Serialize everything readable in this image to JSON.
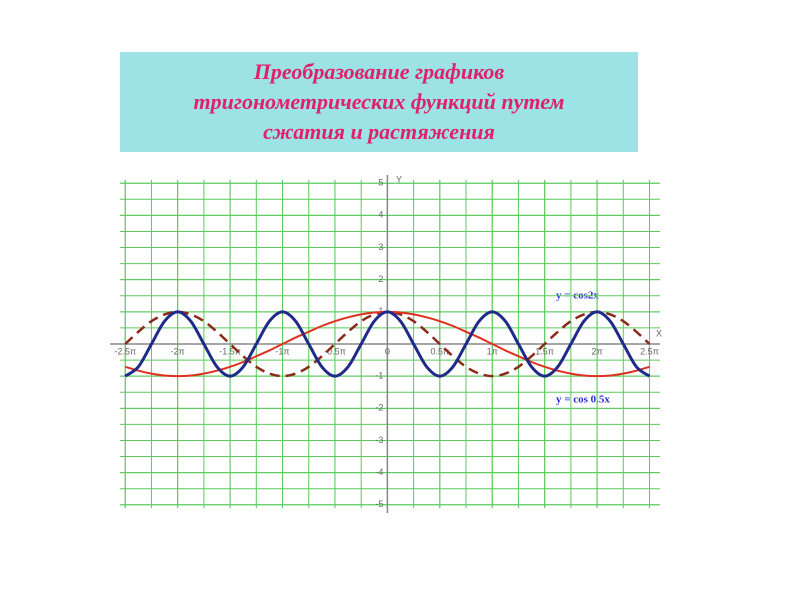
{
  "chart_data": {
    "type": "line",
    "title": "Преобразование графиков тригонометрических функций путем сжатия и растяжения",
    "x_label": "X",
    "y_label": "Y",
    "x": [
      -2.5,
      -2.375,
      -2.25,
      -2.125,
      -2,
      -1.875,
      -1.75,
      -1.625,
      -1.5,
      -1.375,
      -1.25,
      -1.125,
      -1,
      -0.875,
      -0.75,
      -0.625,
      -0.5,
      -0.375,
      -0.25,
      -0.125,
      0,
      0.125,
      0.25,
      0.375,
      0.5,
      0.625,
      0.75,
      0.875,
      1,
      1.125,
      1.25,
      1.375,
      1.5,
      1.625,
      1.75,
      1.875,
      2,
      2.125,
      2.25,
      2.375,
      2.5
    ],
    "series": [
      {
        "color": "#8b2a1a",
        "dashed": true,
        "values": [
          0,
          0.38,
          0.71,
          0.92,
          1,
          0.92,
          0.71,
          0.38,
          0,
          -0.38,
          -0.71,
          -0.92,
          -1,
          -0.92,
          -0.71,
          -0.38,
          0,
          0.38,
          0.71,
          0.92,
          1,
          0.92,
          0.71,
          0.38,
          0,
          -0.38,
          -0.71,
          -0.92,
          -1,
          -0.92,
          -0.71,
          -0.38,
          0,
          0.38,
          0.71,
          0.92,
          1,
          0.92,
          0.71,
          0.38,
          0
        ]
      },
      {
        "name": "y = cos 0.5x",
        "color": "#e03020",
        "values": [
          -0.71,
          -0.83,
          -0.92,
          -0.98,
          -1,
          -0.98,
          -0.92,
          -0.83,
          -0.71,
          -0.56,
          -0.38,
          -0.2,
          0,
          0.2,
          0.38,
          0.56,
          0.71,
          0.83,
          0.92,
          0.98,
          1,
          0.98,
          0.92,
          0.83,
          0.71,
          0.56,
          0.38,
          0.2,
          0,
          -0.2,
          -0.38,
          -0.56,
          -0.71,
          -0.83,
          -0.92,
          -0.98,
          -1,
          -0.98,
          -0.92,
          -0.83,
          -0.71
        ]
      },
      {
        "name": "y = cos2x",
        "color": "#1f2a8a",
        "values": [
          -1,
          -0.71,
          0,
          0.71,
          1,
          0.71,
          0,
          -0.71,
          -1,
          -0.71,
          0,
          0.71,
          1,
          0.71,
          0,
          -0.71,
          -1,
          -0.71,
          0,
          0.71,
          1,
          0.71,
          0,
          -0.71,
          -1,
          -0.71,
          0,
          0.71,
          1,
          0.71,
          0,
          -0.71,
          -1,
          -0.71,
          0,
          0.71,
          1,
          0.71,
          0,
          -0.71,
          -1
        ]
      }
    ],
    "xlim": [
      -2.55,
      2.6
    ],
    "ylim": [
      -5.1,
      5.1
    ],
    "xticks": [
      {
        "value": -2.5,
        "label": "-2.5π"
      },
      {
        "value": -2,
        "label": "-2π"
      },
      {
        "value": -1.5,
        "label": "-1.5π"
      },
      {
        "value": -1,
        "label": "-1π"
      },
      {
        "value": -0.5,
        "label": "-0.5π"
      },
      0,
      {
        "value": 0.5,
        "label": "0.5π"
      },
      {
        "value": 1,
        "label": "1π"
      },
      {
        "value": 1.5,
        "label": "1.5π"
      },
      {
        "value": 2,
        "label": "2π"
      },
      {
        "value": 2.5,
        "label": "2.5π"
      }
    ],
    "yticks": [
      -5,
      -4,
      -3,
      -2,
      -1,
      1,
      2,
      3,
      4,
      5
    ],
    "grid": true
  }
}
